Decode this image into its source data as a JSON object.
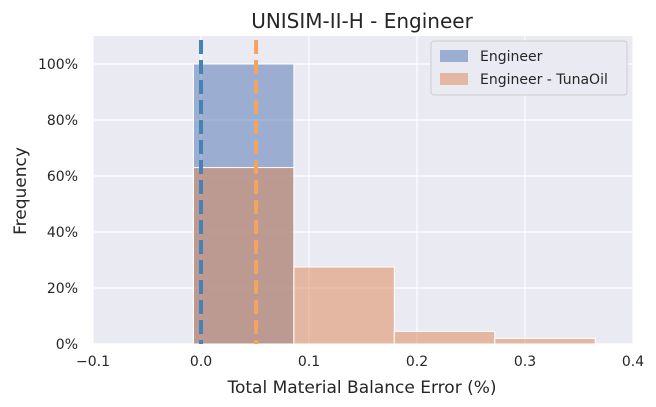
{
  "chart_data": {
    "type": "bar",
    "title": "UNISIM-II-H - Engineer",
    "xlabel": "Total Material Balance Error (%)",
    "ylabel": "Frequency",
    "xlim": [
      -0.1,
      0.4
    ],
    "ylim": [
      0,
      1.1
    ],
    "x_ticks": [
      "−0.1",
      "0.0",
      "0.1",
      "0.2",
      "0.3",
      "0.4"
    ],
    "x_tick_values": [
      -0.1,
      0.0,
      0.1,
      0.2,
      0.3,
      0.4
    ],
    "y_ticks": [
      "0%",
      "20%",
      "40%",
      "60%",
      "80%",
      "100%"
    ],
    "y_tick_values": [
      0,
      0.2,
      0.4,
      0.6,
      0.8,
      1.0
    ],
    "grid": true,
    "legend_position": "top-right",
    "series": [
      {
        "name": "Engineer",
        "color": "#4c72b0",
        "alpha": 0.5,
        "bins": [
          {
            "x0": -0.007,
            "x1": 0.086,
            "value": 1.0
          }
        ],
        "mean_line": 0.0
      },
      {
        "name": "Engineer - TunaOil",
        "color": "#dd8452",
        "alpha": 0.5,
        "bins": [
          {
            "x0": -0.007,
            "x1": 0.086,
            "value": 0.63
          },
          {
            "x0": 0.086,
            "x1": 0.179,
            "value": 0.275
          },
          {
            "x0": 0.179,
            "x1": 0.272,
            "value": 0.045
          },
          {
            "x0": 0.272,
            "x1": 0.365,
            "value": 0.02
          }
        ],
        "mean_line": 0.051
      }
    ],
    "mean_line_colors": [
      "#4682b4",
      "#f4a460"
    ]
  }
}
